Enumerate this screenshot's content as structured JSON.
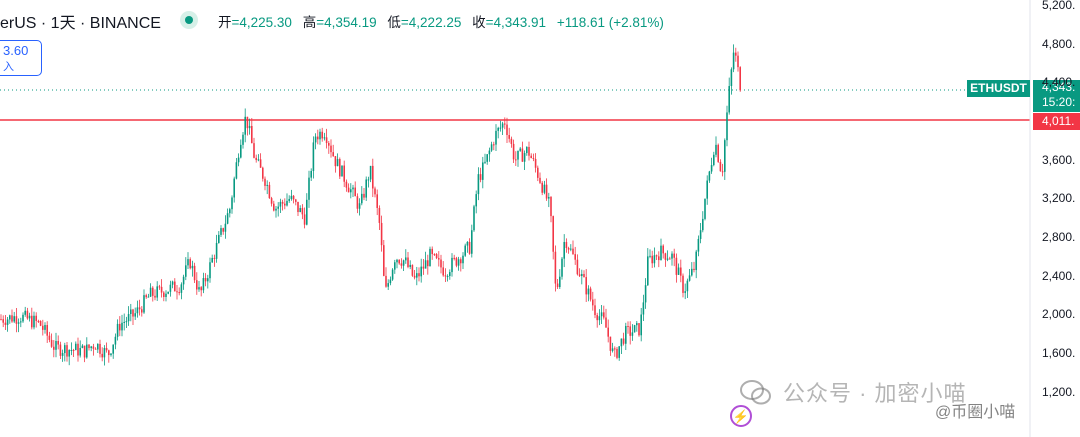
{
  "header": {
    "title_fragment": "erUS · 1天 · BINANCE",
    "open_label": "开",
    "open": "=4,225.30",
    "high_label": "高",
    "high": "=4,354.19",
    "low_label": "低",
    "low": "=4,222.25",
    "close_label": "收",
    "close": "=4,343.91",
    "change": "+118.61 (+2.81%)"
  },
  "left_box": {
    "value": "3.60",
    "label": "入"
  },
  "price_tags": {
    "symbol": "ETHUSDT",
    "last_price": "4,343.",
    "countdown": "15:20:",
    "level_price": "4,011."
  },
  "watermark": {
    "text": "公众号 · 加密小喵",
    "text2": "@币圈小喵"
  },
  "colors": {
    "up": "#089981",
    "down": "#f23645",
    "level_line": "#f23645",
    "background": "#ffffff"
  },
  "icons": {
    "eye": "eye-icon",
    "lightning": "lightning-icon",
    "wechat": "wechat-icon"
  },
  "chart_data": {
    "type": "candlestick",
    "y_ticks": [
      "5,200.",
      "4,800.",
      "4,400.",
      "3,600.",
      "3,200.",
      "2,800.",
      "2,400.",
      "2,000.",
      "1,600.",
      "1,200."
    ],
    "ylim": [
      1000,
      5250
    ],
    "last_price": 4343.91,
    "horizontal_level": 4011,
    "path_points": [
      [
        0,
        1950
      ],
      [
        20,
        1980
      ],
      [
        40,
        1900
      ],
      [
        55,
        1650
      ],
      [
        70,
        1640
      ],
      [
        85,
        1620
      ],
      [
        95,
        1700
      ],
      [
        108,
        1580
      ],
      [
        120,
        1900
      ],
      [
        135,
        2000
      ],
      [
        150,
        2200
      ],
      [
        165,
        2250
      ],
      [
        180,
        2300
      ],
      [
        190,
        2550
      ],
      [
        200,
        2200
      ],
      [
        215,
        2650
      ],
      [
        230,
        3100
      ],
      [
        240,
        3800
      ],
      [
        246,
        4050
      ],
      [
        255,
        3600
      ],
      [
        265,
        3400
      ],
      [
        275,
        3100
      ],
      [
        290,
        3200
      ],
      [
        305,
        3000
      ],
      [
        315,
        3850
      ],
      [
        325,
        3900
      ],
      [
        335,
        3600
      ],
      [
        350,
        3300
      ],
      [
        360,
        3100
      ],
      [
        370,
        3500
      ],
      [
        380,
        2900
      ],
      [
        385,
        2200
      ],
      [
        395,
        2600
      ],
      [
        405,
        2550
      ],
      [
        415,
        2350
      ],
      [
        430,
        2600
      ],
      [
        445,
        2450
      ],
      [
        460,
        2600
      ],
      [
        470,
        2700
      ],
      [
        478,
        3400
      ],
      [
        485,
        3550
      ],
      [
        495,
        3850
      ],
      [
        505,
        4000
      ],
      [
        515,
        3600
      ],
      [
        528,
        3700
      ],
      [
        540,
        3400
      ],
      [
        550,
        3100
      ],
      [
        556,
        2200
      ],
      [
        565,
        2800
      ],
      [
        575,
        2550
      ],
      [
        585,
        2300
      ],
      [
        595,
        2050
      ],
      [
        605,
        1900
      ],
      [
        614,
        1550
      ],
      [
        625,
        1800
      ],
      [
        640,
        1850
      ],
      [
        648,
        2550
      ],
      [
        660,
        2650
      ],
      [
        672,
        2600
      ],
      [
        684,
        2250
      ],
      [
        695,
        2500
      ],
      [
        705,
        3200
      ],
      [
        715,
        3800
      ],
      [
        722,
        3450
      ],
      [
        728,
        4200
      ],
      [
        734,
        4750
      ],
      [
        741,
        4340
      ]
    ]
  }
}
